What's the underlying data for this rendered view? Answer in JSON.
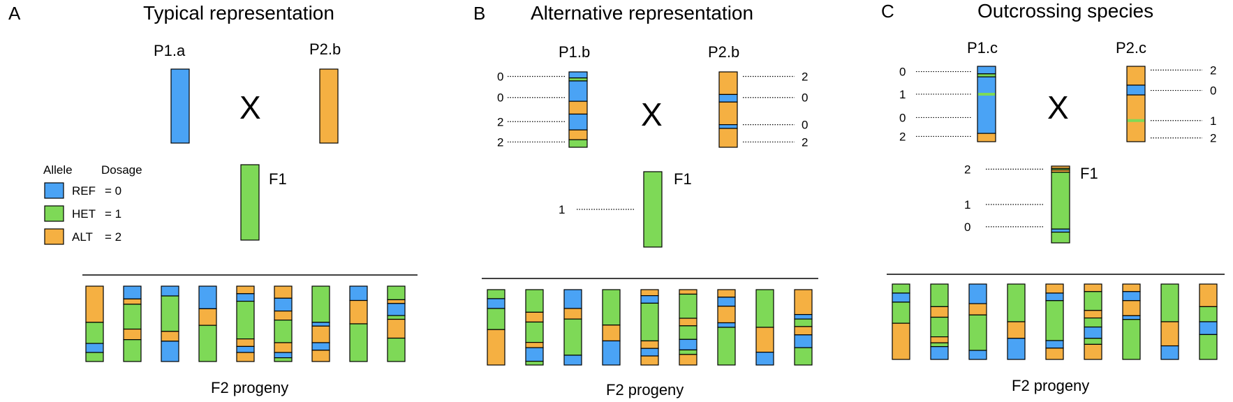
{
  "colors": {
    "REF": "#4aa3f5",
    "HET": "#7ed957",
    "ALT": "#f5b042",
    "marker": "#7ed957"
  },
  "legend": {
    "allele_header": "Allele",
    "dosage_header": "Dosage",
    "items": [
      {
        "allele": "REF",
        "dosage": "= 0"
      },
      {
        "allele": "HET",
        "dosage": "= 1"
      },
      {
        "allele": "ALT",
        "dosage": "= 2"
      }
    ]
  },
  "panels": [
    {
      "letter": "A",
      "title": "Typical representation",
      "parent1": {
        "label": "P1.a",
        "segments": [
          [
            "REF",
            1
          ]
        ]
      },
      "parent2": {
        "label": "P2.b",
        "segments": [
          [
            "ALT",
            1
          ]
        ]
      },
      "cross": "X",
      "f1": {
        "label": "F1",
        "segments": [
          [
            "HET",
            1
          ]
        ]
      },
      "f2_label": "F2 progeny",
      "f2": [
        [
          [
            "ALT",
            0.48
          ],
          [
            "HET",
            0.28
          ],
          [
            "REF",
            0.12
          ],
          [
            "HET",
            0.12
          ]
        ],
        [
          [
            "REF",
            0.17
          ],
          [
            "ALT",
            0.07
          ],
          [
            "HET",
            0.33
          ],
          [
            "ALT",
            0.14
          ],
          [
            "HET",
            0.29
          ]
        ],
        [
          [
            "REF",
            0.13
          ],
          [
            "HET",
            0.47
          ],
          [
            "ALT",
            0.13
          ],
          [
            "REF",
            0.27
          ]
        ],
        [
          [
            "REF",
            0.3
          ],
          [
            "ALT",
            0.22
          ],
          [
            "HET",
            0.48
          ]
        ],
        [
          [
            "ALT",
            0.1
          ],
          [
            "REF",
            0.1
          ],
          [
            "HET",
            0.5
          ],
          [
            "ALT",
            0.1
          ],
          [
            "REF",
            0.08
          ],
          [
            "ALT",
            0.12
          ]
        ],
        [
          [
            "ALT",
            0.16
          ],
          [
            "REF",
            0.17
          ],
          [
            "ALT",
            0.12
          ],
          [
            "HET",
            0.3
          ],
          [
            "ALT",
            0.13
          ],
          [
            "REF",
            0.07
          ],
          [
            "HET",
            0.05
          ]
        ],
        [
          [
            "HET",
            0.48
          ],
          [
            "REF",
            0.05
          ],
          [
            "ALT",
            0.22
          ],
          [
            "REF",
            0.1
          ],
          [
            "ALT",
            0.15
          ]
        ],
        [
          [
            "REF",
            0.19
          ],
          [
            "ALT",
            0.31
          ],
          [
            "HET",
            0.5
          ]
        ],
        [
          [
            "HET",
            0.18
          ],
          [
            "ALT",
            0.05
          ],
          [
            "REF",
            0.16
          ],
          [
            "HET",
            0.05
          ],
          [
            "ALT",
            0.25
          ],
          [
            "HET",
            0.31
          ]
        ]
      ]
    },
    {
      "letter": "B",
      "title": "Alternative  representation",
      "parent1": {
        "label": "P1.b",
        "segments": [
          [
            "REF",
            0.08
          ],
          [
            "HET",
            0.04
          ],
          [
            "REF",
            0.27
          ],
          [
            "ALT",
            0.17
          ],
          [
            "REF",
            0.21
          ],
          [
            "ALT",
            0.13
          ],
          [
            "HET",
            0.1
          ]
        ],
        "dosages": [
          {
            "value": "0",
            "pos": 0.06
          },
          {
            "value": "0",
            "pos": 0.34
          },
          {
            "value": "2",
            "pos": 0.66
          },
          {
            "value": "2",
            "pos": 0.93
          }
        ]
      },
      "parent2": {
        "label": "P2.b",
        "segments": [
          [
            "ALT",
            0.3
          ],
          [
            "REF",
            0.1
          ],
          [
            "ALT",
            0.3
          ],
          [
            "REF",
            0.05
          ],
          [
            "ALT",
            0.25
          ]
        ],
        "dosages": [
          {
            "value": "2",
            "pos": 0.06
          },
          {
            "value": "0",
            "pos": 0.34
          },
          {
            "value": "0",
            "pos": 0.7
          },
          {
            "value": "2",
            "pos": 0.93
          }
        ]
      },
      "cross": "X",
      "f1": {
        "label": "F1",
        "segments": [
          [
            "HET",
            1
          ]
        ],
        "dosages": [
          {
            "value": "1",
            "pos": 0.5
          }
        ]
      },
      "f2_label": "F2 progeny",
      "f2": [
        [
          [
            "HET",
            0.12
          ],
          [
            "REF",
            0.13
          ],
          [
            "HET",
            0.28
          ],
          [
            "ALT",
            0.47
          ]
        ],
        [
          [
            "HET",
            0.3
          ],
          [
            "ALT",
            0.13
          ],
          [
            "HET",
            0.27
          ],
          [
            "ALT",
            0.07
          ],
          [
            "REF",
            0.18
          ],
          [
            "HET",
            0.05
          ]
        ],
        [
          [
            "REF",
            0.25
          ],
          [
            "ALT",
            0.14
          ],
          [
            "HET",
            0.48
          ],
          [
            "REF",
            0.13
          ]
        ],
        [
          [
            "HET",
            0.47
          ],
          [
            "ALT",
            0.21
          ],
          [
            "REF",
            0.32
          ]
        ],
        [
          [
            "ALT",
            0.08
          ],
          [
            "REF",
            0.1
          ],
          [
            "HET",
            0.5
          ],
          [
            "ALT",
            0.1
          ],
          [
            "REF",
            0.1
          ],
          [
            "ALT",
            0.12
          ]
        ],
        [
          [
            "ALT",
            0.06
          ],
          [
            "HET",
            0.32
          ],
          [
            "ALT",
            0.1
          ],
          [
            "HET",
            0.18
          ],
          [
            "REF",
            0.14
          ],
          [
            "HET",
            0.06
          ],
          [
            "ALT",
            0.14
          ]
        ],
        [
          [
            "ALT",
            0.1
          ],
          [
            "REF",
            0.12
          ],
          [
            "ALT",
            0.22
          ],
          [
            "REF",
            0.06
          ],
          [
            "HET",
            0.5
          ]
        ],
        [
          [
            "HET",
            0.5
          ],
          [
            "ALT",
            0.33
          ],
          [
            "REF",
            0.17
          ]
        ],
        [
          [
            "ALT",
            0.33
          ],
          [
            "REF",
            0.06
          ],
          [
            "HET",
            0.1
          ],
          [
            "ALT",
            0.11
          ],
          [
            "REF",
            0.17
          ],
          [
            "HET",
            0.23
          ]
        ]
      ]
    },
    {
      "letter": "C",
      "title": "Outcrossing species",
      "parent1": {
        "label": "P1.c",
        "segments": [
          [
            "REF",
            0.1
          ],
          [
            "HET",
            0.04
          ],
          [
            "REF",
            0.75
          ],
          [
            "ALT",
            0.11
          ]
        ],
        "marker_pos": 0.37,
        "dosages": [
          {
            "value": "0",
            "pos": 0.07
          },
          {
            "value": "1",
            "pos": 0.37
          },
          {
            "value": "0",
            "pos": 0.68
          },
          {
            "value": "2",
            "pos": 0.93
          }
        ]
      },
      "parent2": {
        "label": "P2.c",
        "segments": [
          [
            "ALT",
            0.25
          ],
          [
            "REF",
            0.13
          ],
          [
            "ALT",
            0.62
          ]
        ],
        "marker_pos": 0.72,
        "dosages": [
          {
            "value": "2",
            "pos": 0.05
          },
          {
            "value": "0",
            "pos": 0.32
          },
          {
            "value": "1",
            "pos": 0.72
          },
          {
            "value": "2",
            "pos": 0.95
          }
        ]
      },
      "cross": "X",
      "f1": {
        "label": "F1",
        "segments": [
          [
            "ALT",
            0.03
          ],
          [
            "HET",
            0.02
          ],
          [
            "ALT",
            0.03
          ],
          [
            "HET",
            0.74
          ],
          [
            "REF",
            0.04
          ],
          [
            "HET",
            0.14
          ]
        ],
        "dosages": [
          {
            "value": "2",
            "pos": 0.04
          },
          {
            "value": "1",
            "pos": 0.5
          },
          {
            "value": "0",
            "pos": 0.79
          }
        ]
      },
      "f2_label": "F2 progeny",
      "f2": [
        [
          [
            "HET",
            0.12
          ],
          [
            "REF",
            0.12
          ],
          [
            "HET",
            0.28
          ],
          [
            "ALT",
            0.48
          ]
        ],
        [
          [
            "HET",
            0.3
          ],
          [
            "ALT",
            0.14
          ],
          [
            "HET",
            0.26
          ],
          [
            "ALT",
            0.08
          ],
          [
            "HET",
            0.05
          ],
          [
            "REF",
            0.17
          ]
        ],
        [
          [
            "REF",
            0.26
          ],
          [
            "ALT",
            0.15
          ],
          [
            "HET",
            0.47
          ],
          [
            "REF",
            0.12
          ]
        ],
        [
          [
            "HET",
            0.5
          ],
          [
            "ALT",
            0.22
          ],
          [
            "REF",
            0.28
          ]
        ],
        [
          [
            "ALT",
            0.12
          ],
          [
            "REF",
            0.1
          ],
          [
            "HET",
            0.53
          ],
          [
            "REF",
            0.1
          ],
          [
            "ALT",
            0.15
          ]
        ],
        [
          [
            "ALT",
            0.1
          ],
          [
            "HET",
            0.25
          ],
          [
            "ALT",
            0.1
          ],
          [
            "HET",
            0.12
          ],
          [
            "REF",
            0.15
          ],
          [
            "HET",
            0.08
          ],
          [
            "ALT",
            0.2
          ]
        ],
        [
          [
            "ALT",
            0.1
          ],
          [
            "REF",
            0.12
          ],
          [
            "ALT",
            0.2
          ],
          [
            "REF",
            0.05
          ],
          [
            "HET",
            0.53
          ]
        ],
        [
          [
            "HET",
            0.5
          ],
          [
            "ALT",
            0.32
          ],
          [
            "REF",
            0.18
          ]
        ],
        [
          [
            "ALT",
            0.3
          ],
          [
            "HET",
            0.2
          ],
          [
            "REF",
            0.17
          ],
          [
            "HET",
            0.33
          ]
        ]
      ]
    }
  ]
}
